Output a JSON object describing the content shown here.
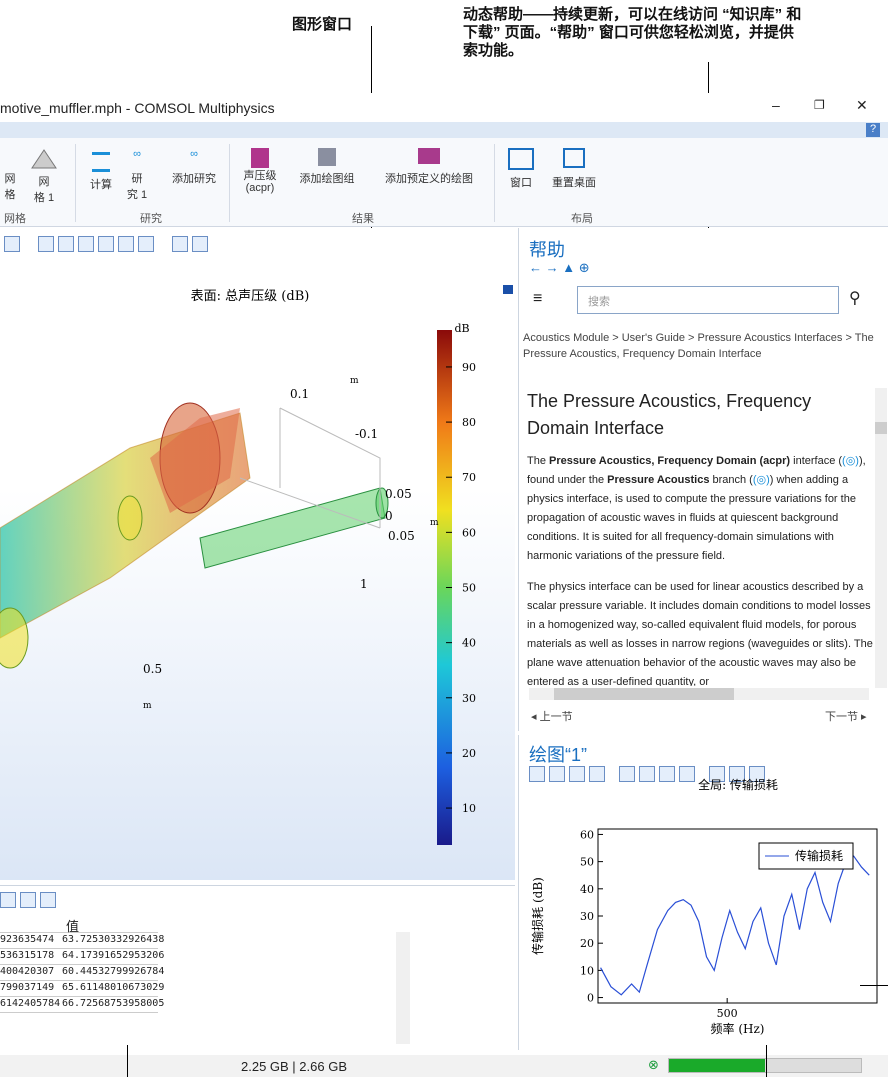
{
  "annotations": {
    "graphics": "图形窗口",
    "help": [
      "动态帮助——持续更新，可以在线访问 “知识库” 和",
      "下载” 页面。“帮助” 窗口可供您轻松浏览，并提供",
      "索功能。"
    ]
  },
  "window": {
    "title": "motive_muffler.mph - COMSOL Multiphysics"
  },
  "ribbon": {
    "groups": [
      {
        "label": "网格",
        "items": [
          "网格",
          "网\n格 1"
        ]
      },
      {
        "label": "研究",
        "items": [
          "计算",
          "研\n究 1",
          "添加研究"
        ]
      },
      {
        "label": "结果",
        "items": [
          "声压级\n(acpr)",
          "添加绘图组",
          "添加预定义的绘图"
        ]
      },
      {
        "label": "布局",
        "items": [
          "窗口",
          "重置桌面"
        ]
      }
    ]
  },
  "graphics": {
    "plot_title": "表面: 总声压级 (dB)",
    "unit": "dB",
    "colorbar": {
      "range": [
        3.3,
        96.7
      ],
      "ticks": [
        10,
        20,
        30,
        40,
        50,
        60,
        70,
        80,
        90
      ]
    },
    "axis_labels": [
      "0.1",
      "-0.1",
      "0.05",
      "0",
      "0.05",
      "1",
      "0.5",
      "m",
      "m",
      "m"
    ]
  },
  "help": {
    "title": "帮助",
    "search": "搜索",
    "breadcrumb": "Acoustics Module > User's Guide > Pressure Acoustics Interfaces > The Pressure Acoustics, Frequency Domain Interface",
    "heading": "The Pressure Acoustics, Frequency Domain Interface",
    "p1": [
      "The ",
      "Pressure Acoustics, Frequency Domain (acpr)",
      " interface (",
      "), found under the ",
      "Pressure Acoustics",
      " branch (",
      ") when adding a physics interface, is used to compute the pressure variations for the propagation of acoustic waves in fluids at quiescent background conditions. It is suited for all frequency-domain simulations with harmonic variations of the pressure field."
    ],
    "p2": "The physics interface can be used for linear acoustics described by a scalar pressure variable. It includes domain conditions to model losses in a homogenized way, so-called equivalent fluid models, for porous materials as well as losses in narrow regions (waveguides or slits). The plane wave attenuation behavior of the acoustic waves may also be entered as a user-defined quantity, or",
    "prev": "◂ 上一节",
    "next": "下一节 ▸"
  },
  "plot_window": {
    "title": "绘图“1”"
  },
  "chart_data": {
    "type": "line",
    "title": "全局: 传输损耗",
    "xlabel": "频率 (Hz)",
    "ylabel": "传输损耗 (dB)",
    "x": [
      10,
      50,
      90,
      130,
      160,
      190,
      230,
      270,
      300,
      330,
      360,
      390,
      420,
      450,
      480,
      510,
      540,
      570,
      600,
      630,
      660,
      690,
      720,
      750,
      780,
      810,
      840,
      870,
      900,
      930,
      960,
      990,
      1020,
      1050
    ],
    "series": [
      {
        "name": "传输损耗",
        "color": "#2a4fd6",
        "values": [
          11,
          4,
          1,
          5,
          2,
          12,
          25,
          32,
          35,
          36,
          34,
          28,
          15,
          10,
          22,
          32,
          24,
          18,
          28,
          33,
          20,
          12,
          30,
          38,
          25,
          40,
          46,
          35,
          28,
          42,
          50,
          52,
          48,
          45
        ]
      }
    ],
    "xlim": [
      0,
      1080
    ],
    "ylim": [
      -2,
      62
    ],
    "xticks": [
      500
    ],
    "yticks": [
      0,
      10,
      20,
      30,
      40,
      50,
      60
    ],
    "legend": "upper right"
  },
  "table": {
    "header": "值",
    "rows": [
      [
        "923635474",
        "63.72530332926438"
      ],
      [
        "536315178",
        "64.17391652953206"
      ],
      [
        "400420307",
        "60.44532799926784"
      ],
      [
        "799037149",
        "65.61148010673029"
      ],
      [
        "6142405784",
        "66.72568753958005"
      ]
    ]
  },
  "status": {
    "memory": "2.25 GB | 2.66 GB"
  }
}
